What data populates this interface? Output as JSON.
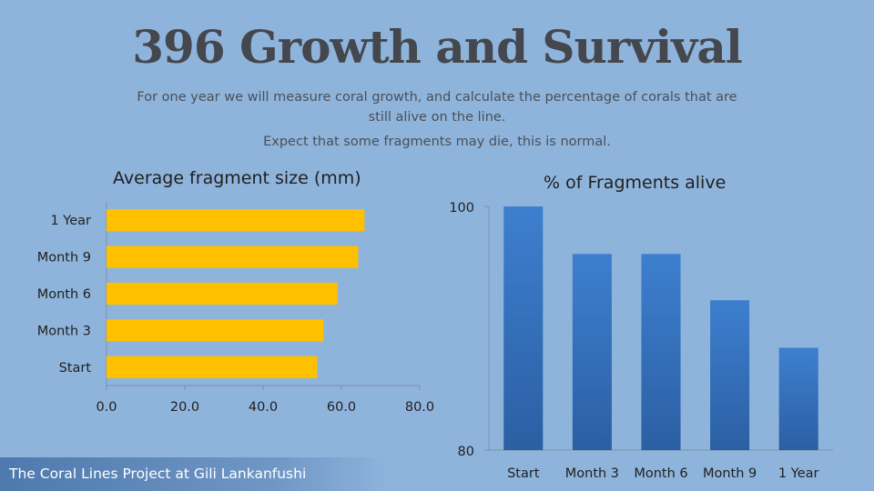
{
  "slide": {
    "title": "396 Growth and Survival",
    "subtitle_line1": "For one year we will measure coral growth, and calculate the percentage of corals that are",
    "subtitle_line2": "still alive on the line.",
    "subtitle_note": "Expect that some fragments may die, this is normal.",
    "footer": "The Coral Lines Project at Gili Lankanfushi"
  },
  "colors": {
    "background": "#8fb4dc",
    "bar_fill": "#ffc000",
    "column_fill_top": "#3d7fcf",
    "column_fill_bottom": "#2b5fa3",
    "axis": "#7f8fa6"
  },
  "chart_data": [
    {
      "type": "bar",
      "orientation": "horizontal",
      "title": "Average fragment size (mm)",
      "categories": [
        "Start",
        "Month 3",
        "Month 6",
        "Month 9",
        "1 Year"
      ],
      "values": [
        53.8,
        55.4,
        59.0,
        64.3,
        65.9
      ],
      "xlim": [
        0,
        80
      ],
      "xticks": [
        "0.0",
        "20.0",
        "40.0",
        "60.0",
        "80.0"
      ],
      "grid": false
    },
    {
      "type": "bar",
      "orientation": "vertical",
      "title": "% of Fragments alive",
      "categories": [
        "Start",
        "Month 3",
        "Month 6",
        "Month 9",
        "1 Year"
      ],
      "values": [
        100,
        96.1,
        96.1,
        92.3,
        88.4
      ],
      "ylim": [
        80,
        100
      ],
      "yticks": [
        "80",
        "100"
      ],
      "grid": false
    }
  ]
}
